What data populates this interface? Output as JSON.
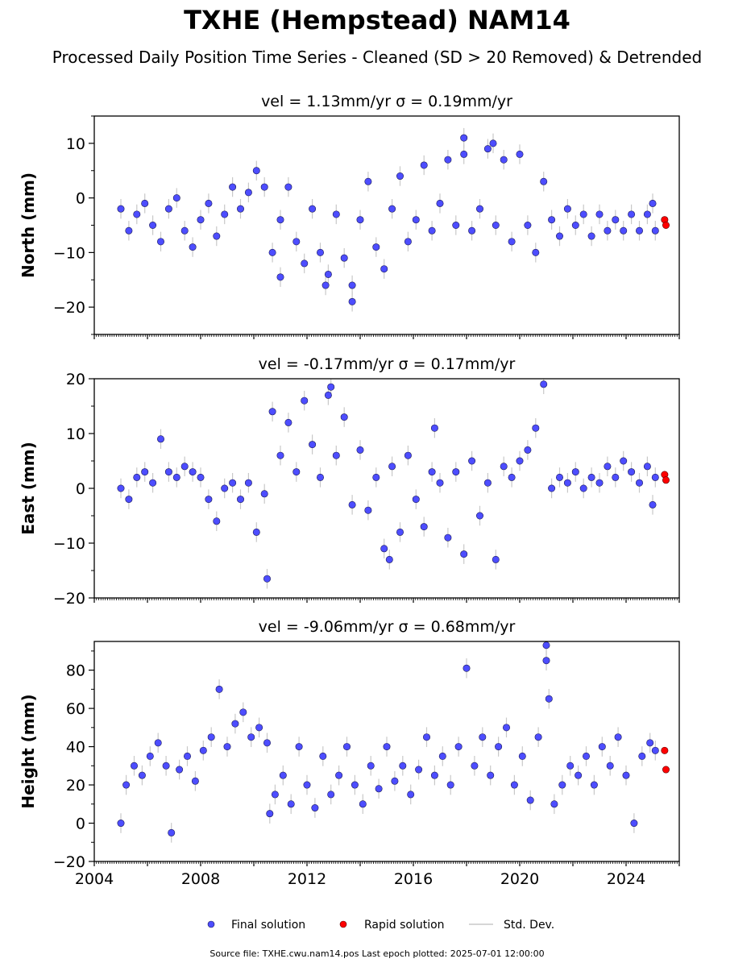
{
  "figure": {
    "title": "TXHE (Hempstead) NAM14",
    "subtitle": "Processed Daily Position Time Series - Cleaned (SD > 20 Removed) & Detrended",
    "source": "Source file: TXHE.cwu.nam14.pos  Last epoch plotted: 2025-07-01 12:00:00"
  },
  "legend": {
    "location": "bottom-center",
    "items": [
      {
        "label": "Final solution",
        "color": "#4d4dff",
        "marker": "circle"
      },
      {
        "label": "Rapid solution",
        "color": "#ff0000",
        "marker": "circle"
      },
      {
        "label": "Std. Dev.",
        "color": "#c8c8c8",
        "marker": "line"
      }
    ]
  },
  "colors": {
    "final": "#4d4dff",
    "final_edge": "#1a1a55",
    "rapid": "#ff0000",
    "errorbar": "#c8c8c8",
    "axis": "#000000"
  },
  "chart_data": [
    {
      "type": "scatter",
      "component": "north",
      "title": "vel = 1.13mm/yr   σ = 0.19mm/yr",
      "ylabel": "North (mm)",
      "xlim": [
        2004,
        2026
      ],
      "ylim": [
        -25,
        15
      ],
      "yticks": [
        -20,
        -10,
        0,
        10
      ],
      "final_points": [
        [
          2005.0,
          -2.0
        ],
        [
          2005.3,
          -6.0
        ],
        [
          2005.6,
          -3.0
        ],
        [
          2005.9,
          -1.0
        ],
        [
          2006.2,
          -5.0
        ],
        [
          2006.5,
          -8.0
        ],
        [
          2006.8,
          -2.0
        ],
        [
          2007.1,
          0.0
        ],
        [
          2007.4,
          -6.0
        ],
        [
          2007.7,
          -9.0
        ],
        [
          2008.0,
          -4.0
        ],
        [
          2008.3,
          -1.0
        ],
        [
          2008.6,
          -7.0
        ],
        [
          2008.9,
          -3.0
        ],
        [
          2009.2,
          2.0
        ],
        [
          2009.5,
          -2.0
        ],
        [
          2009.8,
          1.0
        ],
        [
          2010.1,
          5.0
        ],
        [
          2010.4,
          2.0
        ],
        [
          2010.7,
          -10.0
        ],
        [
          2011.0,
          -4.0
        ],
        [
          2011.3,
          2.0
        ],
        [
          2011.6,
          -8.0
        ],
        [
          2011.9,
          -12.0
        ],
        [
          2012.2,
          -2.0
        ],
        [
          2012.5,
          -10.0
        ],
        [
          2012.8,
          -14.0
        ],
        [
          2013.1,
          -3.0
        ],
        [
          2013.4,
          -11.0
        ],
        [
          2013.7,
          -16.0
        ],
        [
          2014.0,
          -4.0
        ],
        [
          2014.3,
          3.0
        ],
        [
          2014.6,
          -9.0
        ],
        [
          2014.9,
          -13.0
        ],
        [
          2015.2,
          -2.0
        ],
        [
          2015.5,
          4.0
        ],
        [
          2015.8,
          -8.0
        ],
        [
          2016.1,
          -4.0
        ],
        [
          2016.4,
          6.0
        ],
        [
          2016.7,
          -6.0
        ],
        [
          2017.0,
          -1.0
        ],
        [
          2017.3,
          7.0
        ],
        [
          2017.6,
          -5.0
        ],
        [
          2017.9,
          8.0
        ],
        [
          2018.2,
          -6.0
        ],
        [
          2018.5,
          -2.0
        ],
        [
          2018.8,
          9.0
        ],
        [
          2019.1,
          -5.0
        ],
        [
          2019.4,
          7.0
        ],
        [
          2019.7,
          -8.0
        ],
        [
          2020.0,
          8.0
        ],
        [
          2020.3,
          -5.0
        ],
        [
          2020.6,
          -10.0
        ],
        [
          2020.9,
          3.0
        ],
        [
          2021.2,
          -4.0
        ],
        [
          2021.5,
          -7.0
        ],
        [
          2021.8,
          -2.0
        ],
        [
          2022.1,
          -5.0
        ],
        [
          2022.4,
          -3.0
        ],
        [
          2022.7,
          -7.0
        ],
        [
          2023.0,
          -3.0
        ],
        [
          2023.3,
          -6.0
        ],
        [
          2023.6,
          -4.0
        ],
        [
          2023.9,
          -6.0
        ],
        [
          2024.2,
          -3.0
        ],
        [
          2024.5,
          -6.0
        ],
        [
          2024.8,
          -3.0
        ],
        [
          2025.0,
          -1.0
        ],
        [
          2013.7,
          -19.0
        ],
        [
          2017.9,
          11.0
        ],
        [
          2019.0,
          10.0
        ],
        [
          2012.7,
          -16.0
        ],
        [
          2011.0,
          -14.5
        ],
        [
          2025.1,
          -6.0
        ]
      ],
      "rapid_points": [
        [
          2025.45,
          -4.0
        ],
        [
          2025.5,
          -5.0
        ]
      ]
    },
    {
      "type": "scatter",
      "component": "east",
      "title": "vel = -0.17mm/yr   σ = 0.17mm/yr",
      "ylabel": "East (mm)",
      "xlim": [
        2004,
        2026
      ],
      "ylim": [
        -20,
        20
      ],
      "yticks": [
        -20,
        -10,
        0,
        10,
        20
      ],
      "final_points": [
        [
          2005.0,
          0.0
        ],
        [
          2005.3,
          -2.0
        ],
        [
          2005.6,
          2.0
        ],
        [
          2005.9,
          3.0
        ],
        [
          2006.2,
          1.0
        ],
        [
          2006.5,
          9.0
        ],
        [
          2006.8,
          3.0
        ],
        [
          2007.1,
          2.0
        ],
        [
          2007.4,
          4.0
        ],
        [
          2007.7,
          3.0
        ],
        [
          2008.0,
          2.0
        ],
        [
          2008.3,
          -2.0
        ],
        [
          2008.6,
          -6.0
        ],
        [
          2008.9,
          0.0
        ],
        [
          2009.2,
          1.0
        ],
        [
          2009.5,
          -2.0
        ],
        [
          2009.8,
          1.0
        ],
        [
          2010.1,
          -8.0
        ],
        [
          2010.4,
          -1.0
        ],
        [
          2010.5,
          -16.5
        ],
        [
          2010.7,
          14.0
        ],
        [
          2011.0,
          6.0
        ],
        [
          2011.3,
          12.0
        ],
        [
          2011.6,
          3.0
        ],
        [
          2011.9,
          16.0
        ],
        [
          2012.2,
          8.0
        ],
        [
          2012.5,
          2.0
        ],
        [
          2012.8,
          17.0
        ],
        [
          2013.1,
          6.0
        ],
        [
          2013.4,
          13.0
        ],
        [
          2013.7,
          -3.0
        ],
        [
          2014.0,
          7.0
        ],
        [
          2014.3,
          -4.0
        ],
        [
          2014.6,
          2.0
        ],
        [
          2014.9,
          -11.0
        ],
        [
          2015.2,
          4.0
        ],
        [
          2015.5,
          -8.0
        ],
        [
          2015.8,
          6.0
        ],
        [
          2016.1,
          -2.0
        ],
        [
          2016.4,
          -7.0
        ],
        [
          2016.7,
          3.0
        ],
        [
          2017.0,
          1.0
        ],
        [
          2017.3,
          -9.0
        ],
        [
          2017.6,
          3.0
        ],
        [
          2017.9,
          -12.0
        ],
        [
          2018.2,
          5.0
        ],
        [
          2018.5,
          -5.0
        ],
        [
          2018.8,
          1.0
        ],
        [
          2019.1,
          -13.0
        ],
        [
          2019.4,
          4.0
        ],
        [
          2019.7,
          2.0
        ],
        [
          2020.0,
          5.0
        ],
        [
          2020.3,
          7.0
        ],
        [
          2020.6,
          11.0
        ],
        [
          2020.9,
          19.0
        ],
        [
          2021.2,
          0.0
        ],
        [
          2021.5,
          2.0
        ],
        [
          2021.8,
          1.0
        ],
        [
          2022.1,
          3.0
        ],
        [
          2022.4,
          0.0
        ],
        [
          2022.7,
          2.0
        ],
        [
          2023.0,
          1.0
        ],
        [
          2023.3,
          4.0
        ],
        [
          2023.6,
          2.0
        ],
        [
          2023.9,
          5.0
        ],
        [
          2024.2,
          3.0
        ],
        [
          2024.5,
          1.0
        ],
        [
          2024.8,
          4.0
        ],
        [
          2025.0,
          -3.0
        ],
        [
          2012.9,
          18.5
        ],
        [
          2016.8,
          11.0
        ],
        [
          2015.1,
          -13.0
        ],
        [
          2025.1,
          2.0
        ]
      ],
      "rapid_points": [
        [
          2025.45,
          2.5
        ],
        [
          2025.5,
          1.5
        ]
      ]
    },
    {
      "type": "scatter",
      "component": "height",
      "title": "vel = -9.06mm/yr   σ = 0.68mm/yr",
      "ylabel": "Height (mm)",
      "xlim": [
        2004,
        2026
      ],
      "ylim": [
        -20,
        95
      ],
      "yticks": [
        -20,
        0,
        20,
        40,
        60,
        80
      ],
      "xticks": [
        2004,
        2008,
        2012,
        2016,
        2020,
        2024
      ],
      "final_points": [
        [
          2005.0,
          0.0
        ],
        [
          2005.2,
          20.0
        ],
        [
          2005.5,
          30.0
        ],
        [
          2005.8,
          25.0
        ],
        [
          2006.1,
          35.0
        ],
        [
          2006.4,
          42.0
        ],
        [
          2006.7,
          30.0
        ],
        [
          2006.9,
          -5.0
        ],
        [
          2007.2,
          28.0
        ],
        [
          2007.5,
          35.0
        ],
        [
          2007.8,
          22.0
        ],
        [
          2008.1,
          38.0
        ],
        [
          2008.4,
          45.0
        ],
        [
          2008.7,
          70.0
        ],
        [
          2009.0,
          40.0
        ],
        [
          2009.3,
          52.0
        ],
        [
          2009.6,
          58.0
        ],
        [
          2009.9,
          45.0
        ],
        [
          2010.2,
          50.0
        ],
        [
          2010.5,
          42.0
        ],
        [
          2010.6,
          5.0
        ],
        [
          2010.8,
          15.0
        ],
        [
          2011.1,
          25.0
        ],
        [
          2011.4,
          10.0
        ],
        [
          2011.7,
          40.0
        ],
        [
          2012.0,
          20.0
        ],
        [
          2012.3,
          8.0
        ],
        [
          2012.6,
          35.0
        ],
        [
          2012.9,
          15.0
        ],
        [
          2013.2,
          25.0
        ],
        [
          2013.5,
          40.0
        ],
        [
          2013.8,
          20.0
        ],
        [
          2014.1,
          10.0
        ],
        [
          2014.4,
          30.0
        ],
        [
          2014.7,
          18.0
        ],
        [
          2015.0,
          40.0
        ],
        [
          2015.3,
          22.0
        ],
        [
          2015.6,
          30.0
        ],
        [
          2015.9,
          15.0
        ],
        [
          2016.2,
          28.0
        ],
        [
          2016.5,
          45.0
        ],
        [
          2016.8,
          25.0
        ],
        [
          2017.1,
          35.0
        ],
        [
          2017.4,
          20.0
        ],
        [
          2017.7,
          40.0
        ],
        [
          2018.0,
          81.0
        ],
        [
          2018.3,
          30.0
        ],
        [
          2018.6,
          45.0
        ],
        [
          2018.9,
          25.0
        ],
        [
          2019.2,
          40.0
        ],
        [
          2019.5,
          50.0
        ],
        [
          2019.8,
          20.0
        ],
        [
          2020.1,
          35.0
        ],
        [
          2020.4,
          12.0
        ],
        [
          2020.7,
          45.0
        ],
        [
          2021.0,
          93.0
        ],
        [
          2021.0,
          85.0
        ],
        [
          2021.1,
          65.0
        ],
        [
          2021.3,
          10.0
        ],
        [
          2021.6,
          20.0
        ],
        [
          2021.9,
          30.0
        ],
        [
          2022.2,
          25.0
        ],
        [
          2022.5,
          35.0
        ],
        [
          2022.8,
          20.0
        ],
        [
          2023.1,
          40.0
        ],
        [
          2023.4,
          30.0
        ],
        [
          2023.7,
          45.0
        ],
        [
          2024.0,
          25.0
        ],
        [
          2024.3,
          0.0
        ],
        [
          2024.6,
          35.0
        ],
        [
          2024.9,
          42.0
        ],
        [
          2025.1,
          38.0
        ]
      ],
      "rapid_points": [
        [
          2025.45,
          38.0
        ],
        [
          2025.5,
          28.0
        ]
      ]
    }
  ]
}
